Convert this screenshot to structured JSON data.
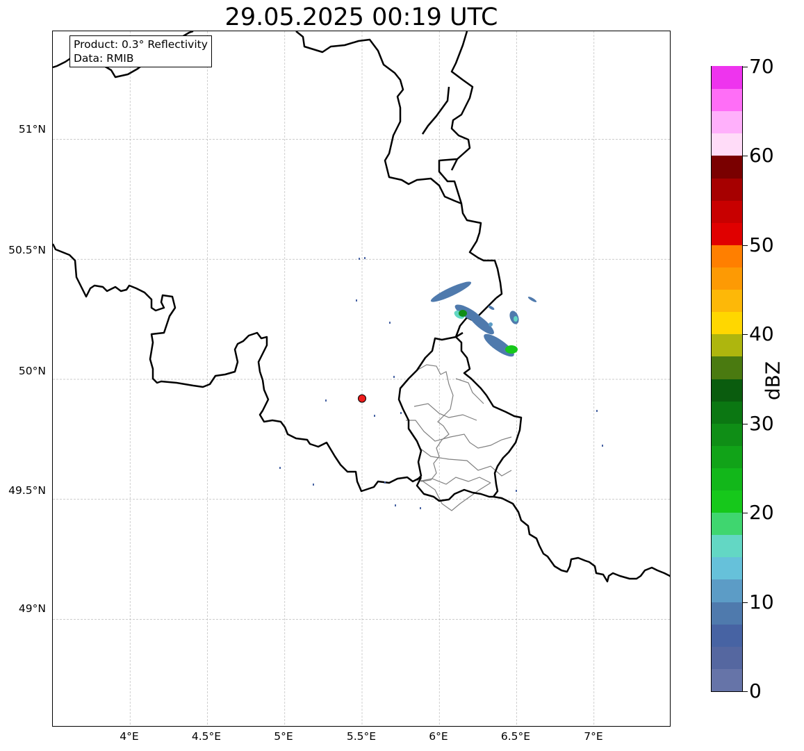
{
  "title": "29.05.2025 00:19 UTC",
  "info": {
    "product": "Product: 0.3° Reflectivity",
    "data": "Data: RMIB"
  },
  "map": {
    "lon_range": [
      3.5,
      7.5
    ],
    "lat_range": [
      48.55,
      51.45
    ],
    "lat_labels": [
      "51°N",
      "50.5°N",
      "50°N",
      "49.5°N",
      "49°N"
    ],
    "lon_labels": [
      "4°E",
      "4.5°E",
      "5°E",
      "5.5°E",
      "6°E",
      "6.5°E",
      "7°E"
    ],
    "grid": true,
    "marker": {
      "lon": 5.5,
      "lat": 49.92,
      "color": "#ee1c1c"
    }
  },
  "colorbar": {
    "unit": "dBZ",
    "range": [
      0,
      70
    ],
    "tick_labels": [
      "0",
      "10",
      "20",
      "30",
      "40",
      "50",
      "60",
      "70"
    ],
    "colors": [
      "#6674a8",
      "#5567a0",
      "#4763a3",
      "#4f7aad",
      "#5c9cc6",
      "#66c1da",
      "#63d7c4",
      "#3fd66f",
      "#16c81b",
      "#12b71a",
      "#11a318",
      "#0f8e16",
      "#0b7712",
      "#0a5c0e",
      "#4a7a10",
      "#aeb60e",
      "#ffd700",
      "#fdb808",
      "#fd9a04",
      "#ff7f00",
      "#e00000",
      "#c80000",
      "#a60000",
      "#7a0000",
      "#ffdcf8",
      "#ffb0fb",
      "#ff6ef7",
      "#ee34ee"
    ]
  }
}
